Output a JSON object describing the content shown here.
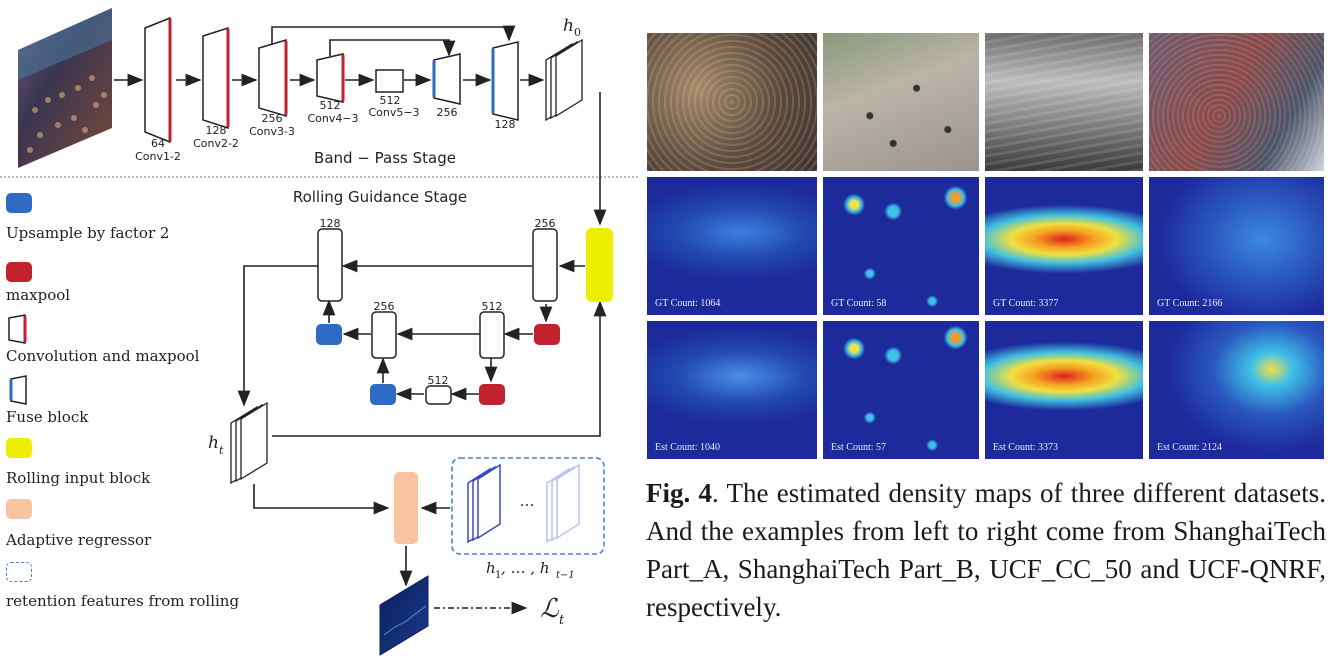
{
  "diagram": {
    "stage_top": "Band − Pass Stage",
    "stage_bottom": "Rolling Guidance Stage",
    "h0": "h",
    "h0_sub": "0",
    "ht": "h",
    "ht_sub": "t",
    "hseq": "h",
    "hseq_tail": ", … , h",
    "hseq_sub1": "1",
    "hseq_sub2": "t−1",
    "dots": "…",
    "loss": "ℒ",
    "loss_sub": "t",
    "conv_blocks": [
      {
        "channels": "64",
        "name": "Conv1-2"
      },
      {
        "channels": "128",
        "name": "Conv2-2"
      },
      {
        "channels": "256",
        "name": "Conv3-3"
      },
      {
        "channels": "512",
        "name": "Conv4−3"
      },
      {
        "channels": "512",
        "name": "Conv5−3"
      },
      {
        "channels": "256",
        "name": ""
      },
      {
        "channels": "128",
        "name": ""
      }
    ],
    "rolling_blocks": [
      "128",
      "256",
      "256",
      "512",
      "512"
    ]
  },
  "legend": [
    {
      "label": "Upsample by factor 2",
      "color": "#2f6bc4",
      "kind": "fill"
    },
    {
      "label": "maxpool",
      "color": "#c0222e",
      "kind": "fill"
    },
    {
      "label": "Convolution and maxpool",
      "color": "#c0222e",
      "kind": "conv"
    },
    {
      "label": "Fuse block",
      "color": "#2f6bc4",
      "kind": "fuse"
    },
    {
      "label": "Rolling input block",
      "color": "#eeee00",
      "kind": "fill"
    },
    {
      "label": "Adaptive regressor",
      "color": "#f7c3a1",
      "kind": "fill"
    },
    {
      "label": "retention features from rolling",
      "color": "#4a7ad6",
      "kind": "dashed"
    }
  ],
  "figure": {
    "gt_counts": [
      "GT Count: 1064",
      "GT Count: 58",
      "GT Count: 3377",
      "GT Count: 2166"
    ],
    "est_counts": [
      "Est Count: 1040",
      "Est Count: 57",
      "Est Count: 3373",
      "Est Count: 2124"
    ],
    "caption_label": "Fig. 4",
    "caption_text": ".  The estimated density maps of three different datasets. And the examples from left to right come from ShanghaiTech Part_A, ShanghaiTech Part_B, UCF_CC_50 and UCF-QNRF, respectively."
  }
}
